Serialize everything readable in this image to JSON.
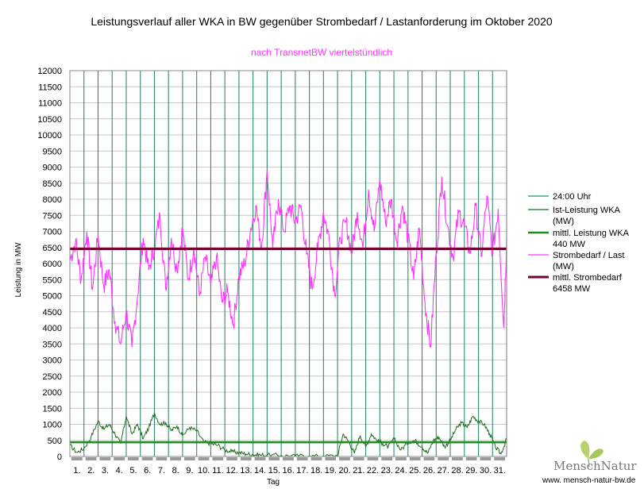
{
  "chart_data": {
    "type": "line",
    "title": "Leistungsverlauf aller WKA in BW gegenüber  Strombedarf / Lastanforderung im Oktober 2020",
    "subtitle": "nach TransnetBW viertelstündlich",
    "xlabel": "Tag",
    "ylabel": "Leistung in MW",
    "ylim": [
      0,
      12000
    ],
    "y_ticks": [
      0,
      500,
      1000,
      1500,
      2000,
      2500,
      3000,
      3500,
      4000,
      4500,
      5000,
      5500,
      6000,
      6500,
      7000,
      7500,
      8000,
      8500,
      9000,
      9500,
      10000,
      10500,
      11000,
      11500,
      12000
    ],
    "y_tick_labels": [
      "0",
      "500",
      "1000",
      "1500",
      "2000",
      "2500",
      "3000",
      "3500",
      "4000",
      "4500",
      "5000",
      "5500",
      "6000",
      "6500",
      "7000",
      "7500",
      "8000",
      "8500",
      "9000",
      "9500",
      "10000",
      "10500",
      "11000",
      "11500",
      "12000"
    ],
    "x_tick_labels": [
      "1.",
      "2.",
      "3.",
      "4.",
      "5.",
      "6.",
      "7.",
      "8.",
      "9.",
      "10.",
      "11.",
      "12.",
      "13.",
      "14.",
      "15.",
      "16.",
      "17.",
      "18.",
      "19.",
      "20.",
      "21.",
      "22.",
      "23.",
      "24.",
      "25.",
      "26.",
      "27.",
      "28.",
      "29.",
      "30.",
      "31."
    ],
    "days": 31,
    "grid": true,
    "legend_position": "right",
    "series": [
      {
        "name": "24:00 Uhr",
        "kind": "day-boundary",
        "color": "#2e8b6e",
        "x": [
          1,
          2,
          3,
          4,
          5,
          6,
          7,
          8,
          9,
          10,
          11,
          12,
          13,
          14,
          15,
          16,
          17,
          18,
          19,
          20,
          21,
          22,
          23,
          24,
          25,
          26,
          27,
          28,
          29,
          30,
          31
        ],
        "legend": [
          "24:00 Uhr"
        ]
      },
      {
        "name": "Ist-Leistung WKA (MW)",
        "color": "#1f6b1f",
        "legend": [
          "Ist-Leistung WKA",
          "(MW)"
        ],
        "x": [
          0,
          0.5,
          1,
          1.5,
          2,
          2.4,
          2.8,
          3.2,
          3.6,
          4,
          4.4,
          4.8,
          5.2,
          5.6,
          6,
          6.4,
          6.8,
          7.2,
          7.6,
          8,
          8.5,
          9,
          9.5,
          10,
          10.5,
          11,
          11.5,
          12,
          12.5,
          13,
          13.5,
          14,
          15,
          16,
          17,
          18,
          19,
          19.4,
          19.8,
          20.2,
          20.6,
          21,
          21.4,
          21.8,
          22.2,
          22.6,
          23,
          23.5,
          24,
          24.5,
          25,
          25.4,
          25.8,
          26.2,
          26.6,
          27,
          27.4,
          27.8,
          28.2,
          28.6,
          29,
          29.4,
          29.8,
          30.2,
          30.6,
          31
        ],
        "values": [
          350,
          120,
          250,
          600,
          1100,
          850,
          1000,
          700,
          400,
          1250,
          700,
          1000,
          550,
          900,
          1350,
          1000,
          1050,
          800,
          950,
          650,
          900,
          800,
          450,
          400,
          350,
          200,
          150,
          120,
          80,
          60,
          50,
          40,
          30,
          20,
          15,
          10,
          30,
          700,
          450,
          100,
          650,
          300,
          700,
          500,
          400,
          300,
          550,
          200,
          450,
          500,
          300,
          100,
          500,
          600,
          300,
          500,
          850,
          1050,
          900,
          1250,
          1100,
          1000,
          700,
          300,
          80,
          550
        ]
      },
      {
        "name": "mittl. Leistung WKA 440 MW",
        "kind": "mean",
        "color": "#1f8a1f",
        "value": 440,
        "legend": [
          "mittl. Leistung WKA",
          "440 MW"
        ]
      },
      {
        "name": "Strombedarf / Last (MW)",
        "color": "#ff33ff",
        "legend": [
          "Strombedarf / Last",
          "(MW)"
        ],
        "x": [
          0,
          0.4,
          0.8,
          1.2,
          1.6,
          2,
          2.4,
          2.8,
          3.2,
          3.6,
          4,
          4.4,
          4.8,
          5.2,
          5.6,
          6,
          6.4,
          6.8,
          7.2,
          7.6,
          8,
          8.4,
          8.8,
          9.2,
          9.6,
          10,
          10.4,
          10.8,
          11.2,
          11.6,
          12,
          12.4,
          12.8,
          13.2,
          13.6,
          14,
          14.4,
          14.8,
          15.2,
          15.6,
          16,
          16.4,
          16.8,
          17.2,
          17.6,
          18,
          18.4,
          18.8,
          19.2,
          19.6,
          20,
          20.4,
          20.8,
          21.2,
          21.6,
          22,
          22.4,
          22.8,
          23.2,
          23.6,
          24,
          24.4,
          24.8,
          25.2,
          25.6,
          26,
          26.4,
          26.8,
          27.2,
          27.6,
          28,
          28.4,
          28.8,
          29.2,
          29.6,
          30,
          30.4,
          30.8,
          31
        ],
        "values": [
          6100,
          6700,
          5500,
          7000,
          5200,
          6900,
          5300,
          5800,
          4200,
          3500,
          4500,
          3400,
          5000,
          6800,
          5800,
          6500,
          7500,
          5200,
          6800,
          5800,
          7100,
          5500,
          6500,
          5000,
          6200,
          5300,
          6200,
          4800,
          5100,
          4100,
          5600,
          6000,
          7000,
          7800,
          6500,
          8900,
          6500,
          8000,
          7000,
          7800,
          7300,
          7800,
          6300,
          5200,
          6500,
          7600,
          6800,
          5000,
          6800,
          7300,
          6300,
          7600,
          6500,
          8300,
          7000,
          8600,
          7300,
          8000,
          6700,
          7800,
          6800,
          5500,
          7100,
          4800,
          3400,
          6300,
          8700,
          7200,
          6200,
          7600,
          7200,
          6300,
          7800,
          6200,
          8100,
          6300,
          7700,
          4000,
          6800
        ]
      },
      {
        "name": "mittl. Strombedarf 6458 MW",
        "kind": "mean",
        "color": "#7a0030",
        "value": 6458,
        "legend": [
          "mittl. Strombedarf",
          "6458 MW"
        ]
      }
    ]
  },
  "logo": {
    "name": "MenschNatur",
    "url": "www. mensch-natur-bw.de"
  }
}
